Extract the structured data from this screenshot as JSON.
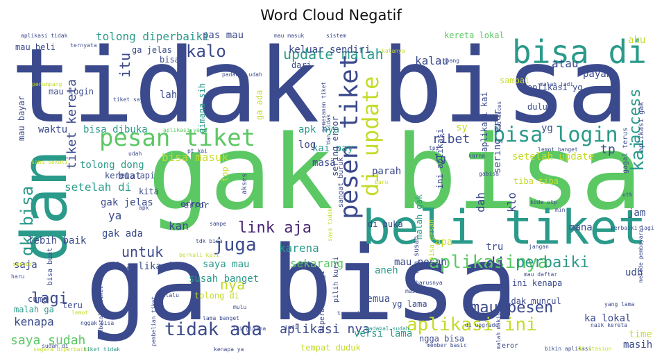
{
  "title": "Word Cloud Negatif",
  "palette": [
    "#3b4a8c",
    "#5bc864",
    "#2a9a8a",
    "#c5db2a",
    "#482475",
    "#21918c",
    "#7ad151",
    "#31688e",
    "#443a83",
    "#a0da39",
    "#2c728e",
    "#dde318"
  ],
  "words": [
    {
      "text": "tidak bisa",
      "color": "#3b4a8c"
    },
    {
      "text": "gak bisa",
      "color": "#5bc864"
    },
    {
      "text": "ga bisa",
      "color": "#3b4a8c"
    },
    {
      "text": "dan",
      "color": "#2a9a8a"
    },
    {
      "text": "beli tiket",
      "color": "#2a9a8a"
    },
    {
      "text": "bisa di",
      "color": "#2a9a8a"
    },
    {
      "text": "pesan tiket",
      "color": "#5bc864"
    },
    {
      "text": "pesen tiket",
      "color": "#3b4a8c"
    },
    {
      "text": "di update",
      "color": "#c5db2a"
    },
    {
      "text": "bisa login",
      "color": "#2a9a8a"
    },
    {
      "text": "aplikasinya",
      "color": "#5bc864"
    },
    {
      "text": "aplikasi ini",
      "color": "#c5db2a"
    },
    {
      "text": "tidak ada",
      "color": "#3b4a8c"
    },
    {
      "text": "kalo",
      "color": "#3b4a8c"
    },
    {
      "text": "juga",
      "color": "#3b4a8c"
    },
    {
      "text": "link aja",
      "color": "#482475"
    },
    {
      "text": "nya",
      "color": "#c5db2a"
    },
    {
      "text": "perbaiki",
      "color": "#2a9a8a"
    },
    {
      "text": "mau pesen",
      "color": "#3b4a8c"
    },
    {
      "text": "di",
      "color": "#3b4a8c"
    },
    {
      "text": "gk bisa",
      "color": "#2a9a8a"
    },
    {
      "text": "kai",
      "color": "#2a9a8a"
    },
    {
      "text": "access",
      "color": "#2a9a8a"
    },
    {
      "text": "lagi",
      "color": "#3b4a8c"
    },
    {
      "text": "untuk",
      "color": "#3b4a8c"
    },
    {
      "text": "itu",
      "color": "#3b4a8c"
    },
    {
      "text": "update malah",
      "color": "#2a9a8a"
    },
    {
      "text": "tiket kereta",
      "color": "#3b4a8c"
    },
    {
      "text": "saya sudah",
      "color": "#5bc864"
    },
    {
      "text": "aplikasi nya",
      "color": "#3b4a8c"
    },
    {
      "text": "kenapa",
      "color": "#3b4a8c"
    },
    {
      "text": "karena",
      "color": "#2a9a8a"
    },
    {
      "text": "sekarang",
      "color": "#5bc864"
    },
    {
      "text": "setelah di",
      "color": "#2a9a8a"
    },
    {
      "text": "bisa masuk",
      "color": "#c5db2a"
    },
    {
      "text": "ribet",
      "color": "#3b4a8c"
    },
    {
      "text": "tp",
      "color": "#3b4a8c"
    },
    {
      "text": "kalau",
      "color": "#3b4a8c"
    },
    {
      "text": "atau",
      "color": "#3b4a8c"
    },
    {
      "text": "tolong diperbaiki",
      "color": "#2a9a8a"
    },
    {
      "text": "mau beli",
      "color": "#3b4a8c"
    },
    {
      "text": "pas mau",
      "color": "#3b4a8c"
    },
    {
      "text": "ga jelas",
      "color": "#3b4a8c"
    },
    {
      "text": "kereta lokal",
      "color": "#5bc864"
    },
    {
      "text": "keluar sendiri",
      "color": "#3b4a8c"
    },
    {
      "text": "error",
      "color": "#3b4a8c"
    },
    {
      "text": "tolong dong",
      "color": "#2a9a8a"
    },
    {
      "text": "ya",
      "color": "#3b4a8c"
    },
    {
      "text": "kan",
      "color": "#3b4a8c"
    },
    {
      "text": "lebih baik",
      "color": "#3b4a8c"
    },
    {
      "text": "gak ada",
      "color": "#3b4a8c"
    },
    {
      "text": "gak jelas",
      "color": "#3b4a8c"
    },
    {
      "text": "di aplikasi",
      "color": "#3b4a8c"
    },
    {
      "text": "saya mau",
      "color": "#2a9a8a"
    },
    {
      "text": "susah banget",
      "color": "#2a9a8a"
    },
    {
      "text": "mau pesan",
      "color": "#3b4a8c"
    },
    {
      "text": "aneh",
      "color": "#2a9a8a"
    },
    {
      "text": "semua",
      "color": "#3b4a8c"
    },
    {
      "text": "apa",
      "color": "#c5db2a"
    },
    {
      "text": "tru",
      "color": "#3b4a8c"
    },
    {
      "text": "mana",
      "color": "#3b4a8c"
    },
    {
      "text": "udh",
      "color": "#3b4a8c"
    },
    {
      "text": "ini kenapa",
      "color": "#3b4a8c"
    },
    {
      "text": "tidak muncul",
      "color": "#3b4a8c"
    },
    {
      "text": "ka lokal",
      "color": "#3b4a8c"
    },
    {
      "text": "time",
      "color": "#c5db2a"
    },
    {
      "text": "masih",
      "color": "#3b4a8c"
    },
    {
      "text": "versi lama",
      "color": "#2a9a8a"
    },
    {
      "text": "parah",
      "color": "#3b4a8c"
    },
    {
      "text": "masa",
      "color": "#3b4a8c"
    },
    {
      "text": "log",
      "color": "#3b4a8c"
    },
    {
      "text": "kai pay",
      "color": "#2a9a8a"
    },
    {
      "text": "apk nya",
      "color": "#2a9a8a"
    },
    {
      "text": "lg",
      "color": "#3b4a8c"
    },
    {
      "text": "sy",
      "color": "#c5db2a"
    },
    {
      "text": "yg",
      "color": "#3b4a8c"
    },
    {
      "text": "yg lama",
      "color": "#3b4a8c"
    },
    {
      "text": "setelah update",
      "color": "#c5db2a"
    },
    {
      "text": "tiba tiba",
      "color": "#c5db2a"
    },
    {
      "text": "klo",
      "color": "#3b4a8c"
    },
    {
      "text": "dah",
      "color": "#3b4a8c"
    },
    {
      "text": "jam",
      "color": "#3b4a8c"
    },
    {
      "text": "kereta api",
      "color": "#3b4a8c"
    },
    {
      "text": "buat",
      "color": "#3b4a8c"
    },
    {
      "text": "bisa dibuka",
      "color": "#2a9a8a"
    },
    {
      "text": "waktu",
      "color": "#3b4a8c"
    },
    {
      "text": "lah",
      "color": "#3b4a8c"
    },
    {
      "text": "bisa",
      "color": "#3b4a8c"
    },
    {
      "text": "dari",
      "color": "#3b4a8c"
    },
    {
      "text": "sampai",
      "color": "#c5db2a"
    },
    {
      "text": "dulu",
      "color": "#3b4a8c"
    },
    {
      "text": "payah",
      "color": "#3b4a8c"
    },
    {
      "text": "aku",
      "color": "#c5db2a"
    },
    {
      "text": "aplikasi yg",
      "color": "#3b4a8c"
    },
    {
      "text": "mau login",
      "color": "#3b4a8c"
    },
    {
      "text": "mau bayar",
      "color": "#3b4a8c"
    },
    {
      "text": "di buka",
      "color": "#3b4a8c"
    },
    {
      "text": "saja",
      "color": "#3b4a8c"
    },
    {
      "text": "cuma",
      "color": "#3b4a8c"
    },
    {
      "text": "teru",
      "color": "#3b4a8c"
    },
    {
      "text": "malah ga",
      "color": "#2a9a8a"
    },
    {
      "text": "tolong di",
      "color": "#c5db2a"
    },
    {
      "text": "error",
      "color": "#3b4a8c"
    },
    {
      "text": "kita",
      "color": "#3b4a8c"
    },
    {
      "text": "top",
      "color": "#c5db2a"
    },
    {
      "text": "aplikasi tidak",
      "color": "#3b4a8c"
    },
    {
      "text": "mau masuk",
      "color": "#3b4a8c"
    },
    {
      "text": "sistem",
      "color": "#3b4a8c"
    },
    {
      "text": "ternyata",
      "color": "#3b4a8c"
    },
    {
      "text": "padahal udah",
      "color": "#3b4a8c"
    },
    {
      "text": "malah jadi",
      "color": "#3b4a8c"
    },
    {
      "text": "katanya",
      "color": "#c5db2a"
    },
    {
      "text": "doang",
      "color": "#3b4a8c"
    },
    {
      "text": "pemesanan tiket",
      "color": "#3b4a8c"
    },
    {
      "text": "aplikasi yang",
      "color": "#5bc864"
    },
    {
      "text": "udah",
      "color": "#3b4a8c"
    },
    {
      "text": "pt kai",
      "color": "#3b4a8c"
    },
    {
      "text": "tpi",
      "color": "#3b4a8c"
    },
    {
      "text": "lemot banget",
      "color": "#3b4a8c"
    },
    {
      "text": "karna",
      "color": "#3b4a8c"
    },
    {
      "text": "utk",
      "color": "#3b4a8c"
    },
    {
      "text": "kode otp",
      "color": "#3b4a8c"
    },
    {
      "text": "apk",
      "color": "#3b4a8c"
    },
    {
      "text": "sampe",
      "color": "#3b4a8c"
    },
    {
      "text": "tdk bisa",
      "color": "#3b4a8c"
    },
    {
      "text": "berkali kali",
      "color": "#c5db2a"
    },
    {
      "text": "jangan",
      "color": "#3b4a8c"
    },
    {
      "text": "server",
      "color": "#c5db2a"
    },
    {
      "text": "haru",
      "color": "#3b4a8c"
    },
    {
      "text": "pembelian tiket",
      "color": "#3b4a8c"
    },
    {
      "text": "lemot",
      "color": "#c5db2a"
    },
    {
      "text": "nggak bisa",
      "color": "#3b4a8c"
    },
    {
      "text": "lama banget",
      "color": "#3b4a8c"
    },
    {
      "text": "ini gimana",
      "color": "#3b4a8c"
    },
    {
      "text": "jadi",
      "color": "#3b4a8c"
    },
    {
      "text": "transaksi",
      "color": "#3b4a8c"
    },
    {
      "text": "padahal sudah",
      "color": "#2a9a8a"
    },
    {
      "text": "di upgrade",
      "color": "#3b4a8c"
    },
    {
      "text": "yang lama",
      "color": "#3b4a8c"
    },
    {
      "text": "naik kereta",
      "color": "#3b4a8c"
    },
    {
      "text": "segera diperbaiki",
      "color": "#c5db2a"
    },
    {
      "text": "tiket tidak",
      "color": "#2a9a8a"
    },
    {
      "text": "kenapa ya",
      "color": "#3b4a8c"
    },
    {
      "text": "member basic",
      "color": "#3b4a8c"
    },
    {
      "text": "bikin aplikasi",
      "color": "#3b4a8c"
    },
    {
      "text": "di stasiun",
      "color": "#c5db2a"
    },
    {
      "text": "masuk ke",
      "color": "#3b4a8c"
    },
    {
      "text": "harusnya",
      "color": "#3b4a8c"
    },
    {
      "text": "mau daftar",
      "color": "#3b4a8c"
    },
    {
      "text": "bisa buat",
      "color": "#3b4a8c"
    },
    {
      "text": "min",
      "color": "#3b4a8c"
    },
    {
      "text": "sama sekali",
      "color": "#c5db2a"
    },
    {
      "text": "tiket saya",
      "color": "#3b4a8c"
    },
    {
      "text": "penumpang",
      "color": "#c5db2a"
    },
    {
      "text": "baru",
      "color": "#c5db2a"
    },
    {
      "text": "gabisa",
      "color": "#3b4a8c"
    },
    {
      "text": "akses",
      "color": "#3b4a8c"
    },
    {
      "text": "sangat buruk",
      "color": "#3b4a8c"
    },
    {
      "text": "saya tidak",
      "color": "#c5db2a"
    },
    {
      "text": "pilih kursi",
      "color": "#3b4a8c"
    },
    {
      "text": "diperbaiki lagi",
      "color": "#3b4a8c"
    },
    {
      "text": "aja susah",
      "color": "#3b4a8c"
    },
    {
      "text": "bisa pesan",
      "color": "#c5db2a"
    },
    {
      "text": "malah gak",
      "color": "#2a9a8a"
    },
    {
      "text": "gimana sih",
      "color": "#2a9a8a"
    },
    {
      "text": "ga ada",
      "color": "#c5db2a"
    },
    {
      "text": "sering error",
      "color": "#3b4a8c"
    },
    {
      "text": "ini aplikasi",
      "color": "#3b4a8c"
    },
    {
      "text": "sering eror",
      "color": "#3b4a8c"
    },
    {
      "text": "aplikasi kai",
      "color": "#3b4a8c"
    },
    {
      "text": "kai acces",
      "color": "#3b4a8c"
    },
    {
      "text": "gagal terus",
      "color": "#3b4a8c"
    },
    {
      "text": "aplikasi gak",
      "color": "#3b4a8c"
    },
    {
      "text": "metode pembayaran",
      "color": "#3b4a8c"
    },
    {
      "text": "malah makin",
      "color": "#3b4a8c"
    },
    {
      "text": "pembatalan tiket",
      "color": "#3b4a8c"
    },
    {
      "text": "perbaiki lagi",
      "color": "#3b4a8c"
    },
    {
      "text": "tempat duduk",
      "color": "#c5db2a"
    },
    {
      "text": "ngga bisa",
      "color": "#3b4a8c"
    },
    {
      "text": "eror",
      "color": "#3b4a8c"
    },
    {
      "text": "mulu",
      "color": "#3b4a8c"
    },
    {
      "text": "selalu",
      "color": "#3b4a8c"
    },
    {
      "text": "sudah di",
      "color": "#3b4a8c"
    },
    {
      "text": "dan tidak",
      "color": "#3b4a8c"
    },
    {
      "text": "ini",
      "color": "#3b4a8c"
    },
    {
      "text": "tiketnya",
      "color": "#3b4a8c"
    }
  ]
}
